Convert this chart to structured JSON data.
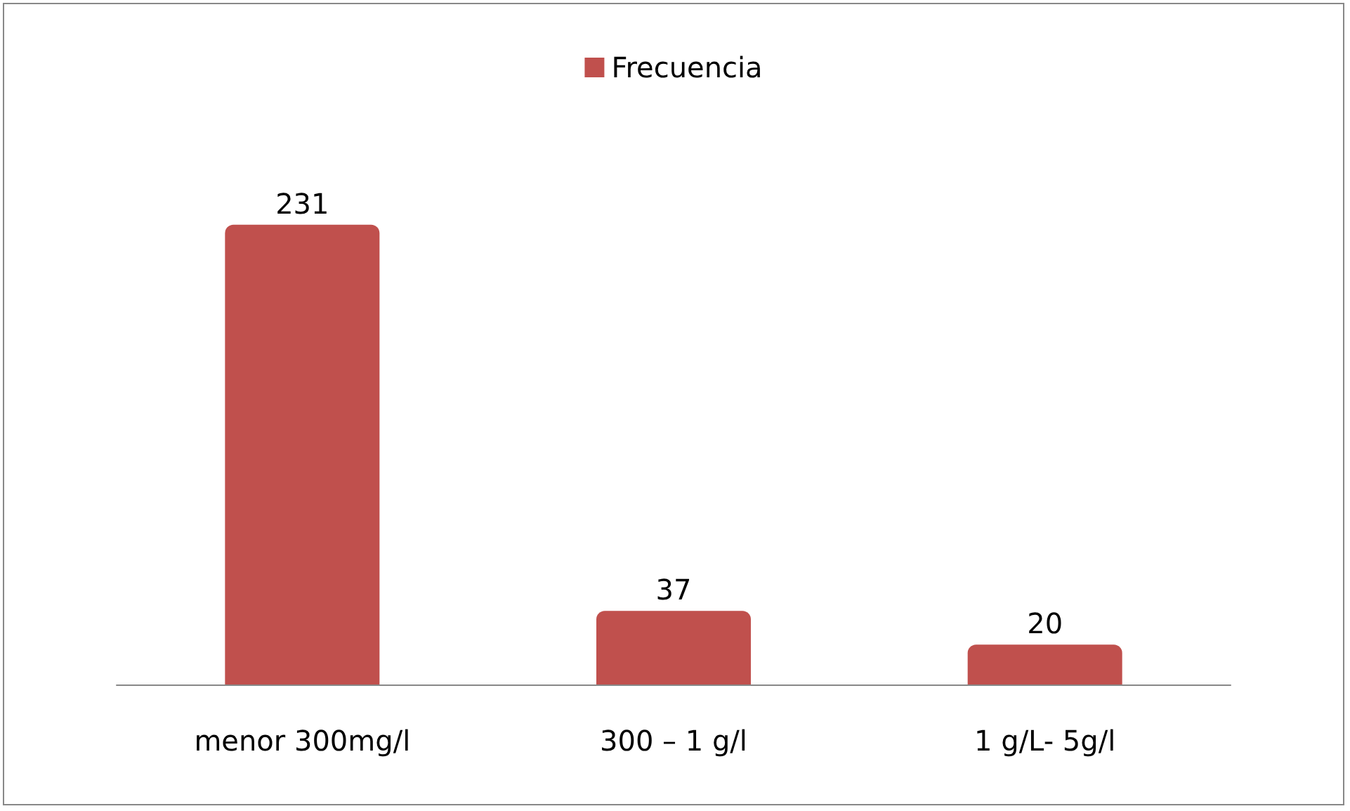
{
  "chart_data": {
    "type": "bar",
    "categories": [
      "menor 300mg/l",
      "300 – 1 g/l",
      "1 g/L- 5g/l"
    ],
    "series": [
      {
        "name": "Frecuencia",
        "color": "#c0504d",
        "values": [
          231,
          37,
          20
        ]
      }
    ],
    "data_labels": true,
    "legend": "top",
    "grid": false
  }
}
